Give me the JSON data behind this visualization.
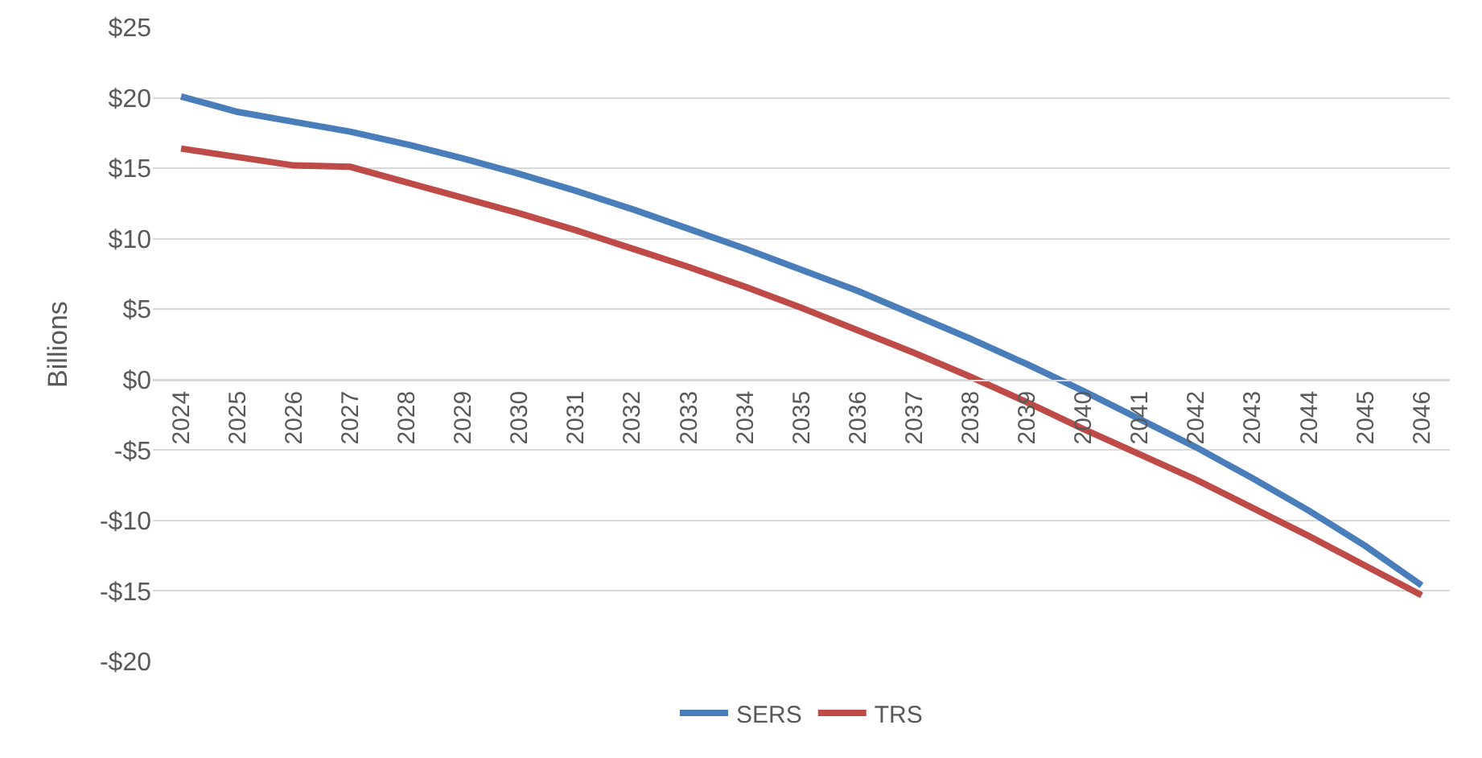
{
  "chart_data": {
    "type": "line",
    "ylabel": "Billions",
    "categories": [
      "2024",
      "2025",
      "2026",
      "2027",
      "2028",
      "2029",
      "2030",
      "2031",
      "2032",
      "2033",
      "2034",
      "2035",
      "2036",
      "2037",
      "2038",
      "2039",
      "2040",
      "2041",
      "2042",
      "2043",
      "2044",
      "2045",
      "2046"
    ],
    "series": [
      {
        "name": "SERS",
        "color": "#4a7ebb",
        "values": [
          20.1,
          19.0,
          18.3,
          17.6,
          16.7,
          15.7,
          14.6,
          13.4,
          12.1,
          10.7,
          9.3,
          7.8,
          6.3,
          4.6,
          2.9,
          1.1,
          -0.8,
          -2.8,
          -4.8,
          -7.0,
          -9.3,
          -11.8,
          -14.6
        ]
      },
      {
        "name": "TRS",
        "color": "#be4b48",
        "values": [
          16.4,
          15.8,
          15.2,
          15.1,
          14.0,
          12.9,
          11.8,
          10.6,
          9.3,
          8.0,
          6.6,
          5.1,
          3.5,
          1.9,
          0.2,
          -1.6,
          -3.5,
          -5.3,
          -7.1,
          -9.1,
          -11.1,
          -13.2,
          -15.3
        ]
      }
    ],
    "ylim": [
      -20,
      25
    ],
    "yticks": [
      {
        "value": -20,
        "label": "-$20"
      },
      {
        "value": -15,
        "label": "-$15"
      },
      {
        "value": -10,
        "label": "-$10"
      },
      {
        "value": -5,
        "label": "-$5"
      },
      {
        "value": 0,
        "label": "$0"
      },
      {
        "value": 5,
        "label": "$5"
      },
      {
        "value": 10,
        "label": "$10"
      },
      {
        "value": 15,
        "label": "$15"
      },
      {
        "value": 20,
        "label": "$20"
      },
      {
        "value": 25,
        "label": "$25"
      }
    ],
    "grid": "y",
    "legend": "bottom",
    "marker": "none",
    "line_style": "solid"
  }
}
